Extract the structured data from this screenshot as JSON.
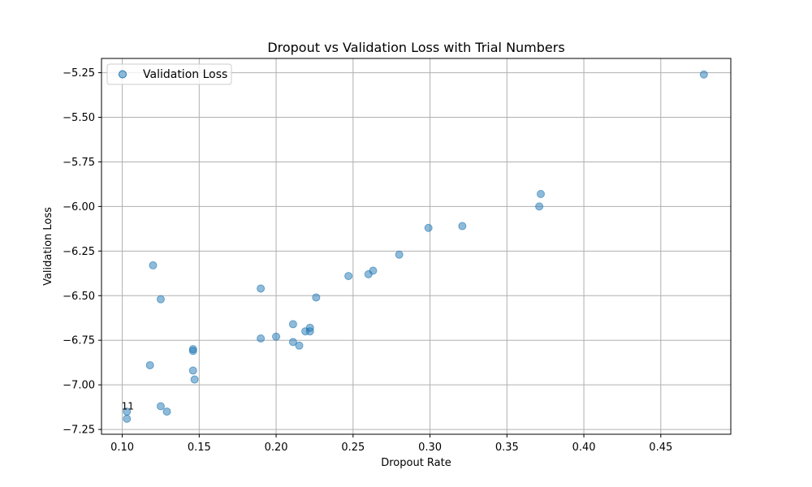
{
  "chart_data": {
    "type": "scatter",
    "title": "Dropout vs Validation Loss with Trial Numbers",
    "xlabel": "Dropout Rate",
    "ylabel": "Validation Loss",
    "xlim": [
      0.0865,
      0.4955
    ],
    "ylim": [
      -7.277,
      -5.17
    ],
    "xticks": [
      0.1,
      0.15,
      0.2,
      0.25,
      0.3,
      0.35,
      0.4,
      0.45
    ],
    "xtick_labels": [
      "0.10",
      "0.15",
      "0.20",
      "0.25",
      "0.30",
      "0.35",
      "0.40",
      "0.45"
    ],
    "yticks": [
      -5.25,
      -5.5,
      -5.75,
      -6.0,
      -6.25,
      -6.5,
      -6.75,
      -7.0,
      -7.25
    ],
    "ytick_labels": [
      "−5.25",
      "−5.50",
      "−5.75",
      "−6.00",
      "−6.25",
      "−6.50",
      "−6.75",
      "−7.00",
      "−7.25"
    ],
    "grid": true,
    "legend_position": "top-left",
    "series": [
      {
        "name": "Validation Loss",
        "color": "#1f77b4",
        "points": [
          [
            0.478,
            -5.26
          ],
          [
            0.372,
            -5.93
          ],
          [
            0.371,
            -6.0
          ],
          [
            0.321,
            -6.11
          ],
          [
            0.299,
            -6.12
          ],
          [
            0.28,
            -6.27
          ],
          [
            0.263,
            -6.36
          ],
          [
            0.26,
            -6.38
          ],
          [
            0.247,
            -6.39
          ],
          [
            0.12,
            -6.33
          ],
          [
            0.19,
            -6.46
          ],
          [
            0.125,
            -6.52
          ],
          [
            0.226,
            -6.51
          ],
          [
            0.211,
            -6.66
          ],
          [
            0.222,
            -6.68
          ],
          [
            0.222,
            -6.7
          ],
          [
            0.219,
            -6.7
          ],
          [
            0.2,
            -6.73
          ],
          [
            0.19,
            -6.74
          ],
          [
            0.211,
            -6.76
          ],
          [
            0.215,
            -6.78
          ],
          [
            0.146,
            -6.8
          ],
          [
            0.146,
            -6.81
          ],
          [
            0.118,
            -6.89
          ],
          [
            0.146,
            -6.92
          ],
          [
            0.147,
            -6.97
          ],
          [
            0.125,
            -7.12
          ],
          [
            0.103,
            -7.15
          ],
          [
            0.129,
            -7.15
          ],
          [
            0.103,
            -7.19
          ]
        ]
      }
    ],
    "annotations": [
      {
        "text": "11",
        "x": 0.1035,
        "y": -7.12
      }
    ]
  }
}
